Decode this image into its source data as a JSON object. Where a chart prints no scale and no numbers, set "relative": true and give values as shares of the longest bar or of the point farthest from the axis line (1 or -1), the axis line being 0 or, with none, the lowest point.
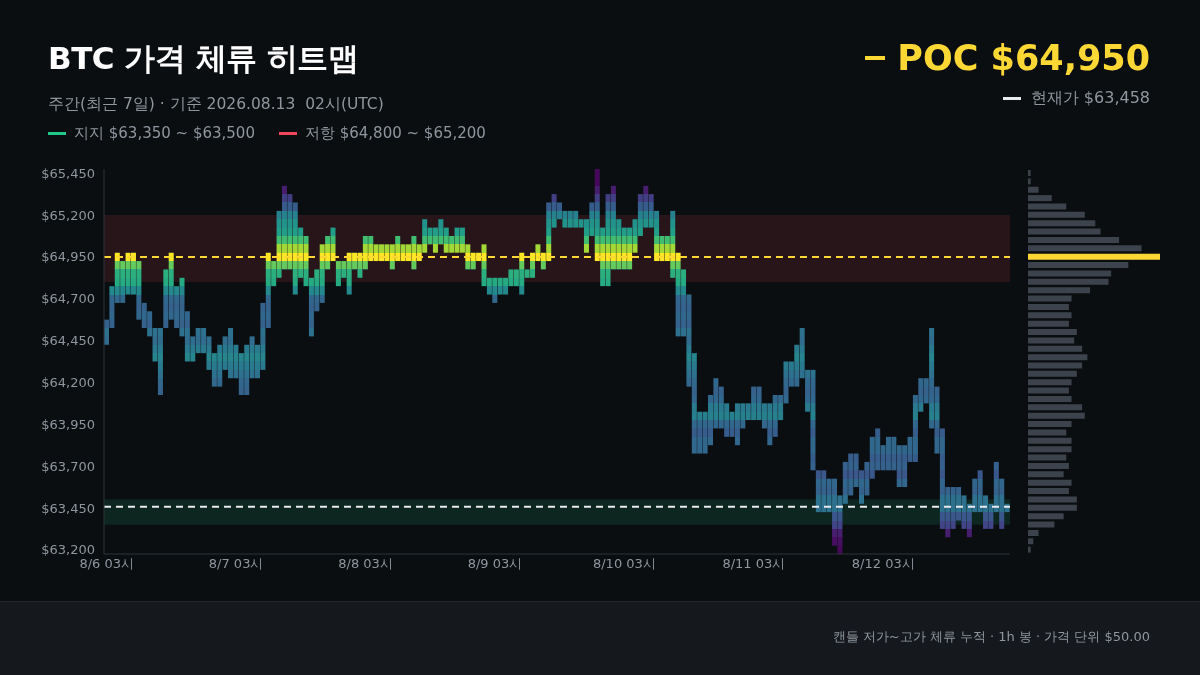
{
  "chart_data": [
    {
      "type": "bar",
      "title": "BTC 가격 체류 히트맵",
      "subtitle": "주간(최근 7일) · 기준 2026.08.13  02시(UTC)",
      "legend": "top",
      "annotations": [
        "캔들 저가~고가 체류 누적 · 1h 봉 · 가격 단위 $50.00"
      ],
      "x": [
        "2026-08-06T03:00",
        "2026-08-06T04:00",
        "2026-08-06T05:00",
        "2026-08-06T06:00",
        "2026-08-06T07:00",
        "2026-08-06T08:00",
        "2026-08-06T09:00",
        "2026-08-06T10:00",
        "2026-08-06T11:00",
        "2026-08-06T12:00",
        "2026-08-06T13:00",
        "2026-08-06T14:00",
        "2026-08-06T15:00",
        "2026-08-06T16:00",
        "2026-08-06T17:00",
        "2026-08-06T18:00",
        "2026-08-06T19:00",
        "2026-08-06T20:00",
        "2026-08-06T21:00",
        "2026-08-06T22:00",
        "2026-08-06T23:00",
        "2026-08-07T00:00",
        "2026-08-07T01:00",
        "2026-08-07T02:00",
        "2026-08-07T03:00",
        "2026-08-07T04:00",
        "2026-08-07T05:00",
        "2026-08-07T06:00",
        "2026-08-07T07:00",
        "2026-08-07T08:00",
        "2026-08-07T09:00",
        "2026-08-07T10:00",
        "2026-08-07T11:00",
        "2026-08-07T12:00",
        "2026-08-07T13:00",
        "2026-08-07T14:00",
        "2026-08-07T15:00",
        "2026-08-07T16:00",
        "2026-08-07T17:00",
        "2026-08-07T18:00",
        "2026-08-07T19:00",
        "2026-08-07T20:00",
        "2026-08-07T21:00",
        "2026-08-07T22:00",
        "2026-08-07T23:00",
        "2026-08-08T00:00",
        "2026-08-08T01:00",
        "2026-08-08T02:00",
        "2026-08-08T03:00",
        "2026-08-08T04:00",
        "2026-08-08T05:00",
        "2026-08-08T06:00",
        "2026-08-08T07:00",
        "2026-08-08T08:00",
        "2026-08-08T09:00",
        "2026-08-08T10:00",
        "2026-08-08T11:00",
        "2026-08-08T12:00",
        "2026-08-08T13:00",
        "2026-08-08T14:00",
        "2026-08-08T15:00",
        "2026-08-08T16:00",
        "2026-08-08T17:00",
        "2026-08-08T18:00",
        "2026-08-08T19:00",
        "2026-08-08T20:00",
        "2026-08-08T21:00",
        "2026-08-08T22:00",
        "2026-08-08T23:00",
        "2026-08-09T00:00",
        "2026-08-09T01:00",
        "2026-08-09T02:00",
        "2026-08-09T03:00",
        "2026-08-09T04:00",
        "2026-08-09T05:00",
        "2026-08-09T06:00",
        "2026-08-09T07:00",
        "2026-08-09T08:00",
        "2026-08-09T09:00",
        "2026-08-09T10:00",
        "2026-08-09T11:00",
        "2026-08-09T12:00",
        "2026-08-09T13:00",
        "2026-08-09T14:00",
        "2026-08-09T15:00",
        "2026-08-09T16:00",
        "2026-08-09T17:00",
        "2026-08-09T18:00",
        "2026-08-09T19:00",
        "2026-08-09T20:00",
        "2026-08-09T21:00",
        "2026-08-09T22:00",
        "2026-08-09T23:00",
        "2026-08-10T00:00",
        "2026-08-10T01:00",
        "2026-08-10T02:00",
        "2026-08-10T03:00",
        "2026-08-10T04:00",
        "2026-08-10T05:00",
        "2026-08-10T06:00",
        "2026-08-10T07:00",
        "2026-08-10T08:00",
        "2026-08-10T09:00",
        "2026-08-10T10:00",
        "2026-08-10T11:00",
        "2026-08-10T12:00",
        "2026-08-10T13:00",
        "2026-08-10T14:00",
        "2026-08-10T15:00",
        "2026-08-10T16:00",
        "2026-08-10T17:00",
        "2026-08-10T18:00",
        "2026-08-10T19:00",
        "2026-08-10T20:00",
        "2026-08-10T21:00",
        "2026-08-10T22:00",
        "2026-08-10T23:00",
        "2026-08-11T00:00",
        "2026-08-11T01:00",
        "2026-08-11T02:00",
        "2026-08-11T03:00",
        "2026-08-11T04:00",
        "2026-08-11T05:00",
        "2026-08-11T06:00",
        "2026-08-11T07:00",
        "2026-08-11T08:00",
        "2026-08-11T09:00",
        "2026-08-11T10:00",
        "2026-08-11T11:00",
        "2026-08-11T12:00",
        "2026-08-11T13:00",
        "2026-08-11T14:00",
        "2026-08-11T15:00",
        "2026-08-11T16:00",
        "2026-08-11T17:00",
        "2026-08-11T18:00",
        "2026-08-11T19:00",
        "2026-08-11T20:00",
        "2026-08-11T21:00",
        "2026-08-11T22:00",
        "2026-08-11T23:00",
        "2026-08-12T00:00",
        "2026-08-12T01:00",
        "2026-08-12T02:00",
        "2026-08-12T03:00",
        "2026-08-12T04:00",
        "2026-08-12T05:00",
        "2026-08-12T06:00",
        "2026-08-12T07:00",
        "2026-08-12T08:00",
        "2026-08-12T09:00",
        "2026-08-12T10:00",
        "2026-08-12T11:00",
        "2026-08-12T12:00",
        "2026-08-12T13:00",
        "2026-08-12T14:00",
        "2026-08-12T15:00",
        "2026-08-12T16:00",
        "2026-08-12T17:00",
        "2026-08-12T18:00",
        "2026-08-12T19:00",
        "2026-08-12T20:00",
        "2026-08-12T21:00",
        "2026-08-12T22:00",
        "2026-08-12T23:00",
        "2026-08-13T00:00",
        "2026-08-13T01:00",
        "2026-08-13T02:00"
      ],
      "base": [
        64425,
        64525,
        64675,
        64675,
        64725,
        64725,
        64575,
        64525,
        64475,
        64325,
        64125,
        64525,
        64575,
        64525,
        64475,
        64325,
        64325,
        64375,
        64375,
        64275,
        64175,
        64175,
        64275,
        64225,
        64225,
        64125,
        64125,
        64225,
        64225,
        64275,
        64525,
        64775,
        64825,
        64875,
        64875,
        64725,
        64825,
        64775,
        64475,
        64625,
        64675,
        64875,
        64925,
        64775,
        64825,
        64725,
        64875,
        64825,
        64875,
        64925,
        64925,
        64925,
        64925,
        64875,
        64925,
        64925,
        64925,
        64875,
        64925,
        64975,
        65025,
        64975,
        65025,
        64975,
        64975,
        64975,
        64975,
        64875,
        64875,
        64925,
        64775,
        64725,
        64675,
        64725,
        64725,
        64775,
        64775,
        64725,
        64825,
        64825,
        64925,
        64875,
        64925,
        65125,
        65175,
        65125,
        65125,
        65125,
        65125,
        64975,
        65075,
        64925,
        64775,
        64775,
        64875,
        64875,
        64875,
        64875,
        64975,
        65075,
        65125,
        65125,
        64925,
        64925,
        64925,
        64825,
        64475,
        64475,
        64175,
        63775,
        63775,
        63775,
        63825,
        63925,
        63925,
        63875,
        63875,
        63825,
        63925,
        63975,
        63975,
        63975,
        63925,
        63825,
        63875,
        63975,
        64075,
        64175,
        64175,
        64225,
        64025,
        63675,
        63425,
        63425,
        63425,
        63225,
        63175,
        63475,
        63525,
        63575,
        63475,
        63525,
        63625,
        63675,
        63675,
        63675,
        63675,
        63575,
        63575,
        63725,
        63725,
        64025,
        64075,
        63925,
        63775,
        63325,
        63275,
        63325,
        63375,
        63325,
        63275,
        63425,
        63425,
        63325,
        63325,
        63425,
        63325,
        63425
      ],
      "values": [
        150,
        250,
        300,
        250,
        250,
        250,
        350,
        150,
        150,
        200,
        400,
        350,
        400,
        250,
        350,
        300,
        150,
        150,
        150,
        200,
        200,
        250,
        200,
        300,
        200,
        250,
        300,
        250,
        200,
        400,
        450,
        150,
        400,
        500,
        450,
        550,
        300,
        300,
        350,
        250,
        350,
        200,
        200,
        150,
        100,
        250,
        100,
        150,
        200,
        150,
        100,
        100,
        100,
        150,
        150,
        100,
        100,
        200,
        100,
        200,
        100,
        150,
        150,
        150,
        100,
        150,
        150,
        150,
        100,
        50,
        250,
        100,
        150,
        100,
        100,
        100,
        100,
        250,
        50,
        150,
        100,
        100,
        350,
        200,
        100,
        100,
        100,
        100,
        50,
        200,
        200,
        550,
        350,
        550,
        500,
        300,
        250,
        250,
        200,
        250,
        250,
        200,
        300,
        150,
        150,
        400,
        500,
        400,
        550,
        600,
        250,
        250,
        300,
        300,
        250,
        200,
        150,
        250,
        150,
        100,
        200,
        200,
        150,
        250,
        250,
        150,
        250,
        150,
        250,
        300,
        250,
        600,
        250,
        250,
        200,
        400,
        350,
        250,
        250,
        200,
        200,
        200,
        250,
        250,
        150,
        200,
        200,
        250,
        250,
        150,
        400,
        200,
        150,
        600,
        400,
        600,
        300,
        250,
        200,
        200,
        200,
        200,
        250,
        200,
        150,
        300,
        300,
        50
      ],
      "xlim": [
        "2026-08-06T02:30",
        "2026-08-13T02:30"
      ],
      "xticks": [
        {
          "value": "2026-08-06T03:00",
          "label": "8/6 03시"
        },
        {
          "value": "2026-08-07T03:00",
          "label": "8/7 03시"
        },
        {
          "value": "2026-08-08T03:00",
          "label": "8/8 03시"
        },
        {
          "value": "2026-08-09T03:00",
          "label": "8/9 03시"
        },
        {
          "value": "2026-08-10T03:00",
          "label": "8/10 03시"
        },
        {
          "value": "2026-08-11T03:00",
          "label": "8/11 03시"
        },
        {
          "value": "2026-08-12T03:00",
          "label": "8/12 03시"
        }
      ],
      "ylim": [
        63175,
        65475
      ],
      "yticks": [
        {
          "value": 63200,
          "label": "$63,200"
        },
        {
          "value": 63450,
          "label": "$63,450"
        },
        {
          "value": 63700,
          "label": "$63,700"
        },
        {
          "value": 63950,
          "label": "$63,950"
        },
        {
          "value": 64200,
          "label": "$64,200"
        },
        {
          "value": 64450,
          "label": "$64,450"
        },
        {
          "value": 64700,
          "label": "$64,700"
        },
        {
          "value": 64950,
          "label": "$64,950"
        },
        {
          "value": 65200,
          "label": "$65,200"
        },
        {
          "value": 65450,
          "label": "$65,450"
        }
      ],
      "ref_lines": [
        {
          "axis": "y",
          "value": 64950,
          "label": "POC $64,950",
          "color": "#fdd835",
          "line_style": "dashed"
        },
        {
          "axis": "y",
          "value": 63458,
          "label": "현재가 $63,458",
          "color": "#e8eaed",
          "line_style": "dashed"
        }
      ],
      "bands": [
        {
          "axis": "y",
          "from": 63350,
          "to": 63500,
          "label": "지지 $63,350 ~ $63,500",
          "color": "#1ec98a"
        },
        {
          "axis": "y",
          "from": 64800,
          "to": 65200,
          "label": "저항 $64,800 ~ $65,200",
          "color": "#f2475b"
        }
      ]
    },
    {
      "type": "bar",
      "orientation": "horizontal",
      "relative": true,
      "tick_labels": false,
      "categories": [
        null,
        null,
        null,
        null,
        null,
        null,
        null,
        null,
        null,
        null,
        null,
        null,
        null,
        null,
        null,
        null,
        null,
        null,
        null,
        null,
        null,
        null,
        null,
        null,
        null,
        null,
        null,
        null,
        null,
        null,
        null,
        null,
        null,
        null,
        null,
        null,
        null,
        null,
        null,
        null,
        null,
        null,
        null,
        null,
        null,
        null
      ],
      "values": [
        0.02,
        0.02,
        0.08,
        0.18,
        0.29,
        0.43,
        0.51,
        0.55,
        0.69,
        0.86,
        1,
        0.76,
        0.63,
        0.61,
        0.47,
        0.33,
        0.31,
        0.33,
        0.31,
        0.37,
        0.35,
        0.41,
        0.45,
        0.41,
        0.37,
        0.33,
        0.31,
        0.33,
        0.41,
        0.43,
        0.33,
        0.29,
        0.33,
        0.33,
        0.29,
        0.31,
        0.27,
        0.33,
        0.31,
        0.37,
        0.37,
        0.27,
        0.2,
        0.08,
        0.04,
        0.02
      ],
      "colors": [
        "#3d434d",
        "#3d434d",
        "#3d434d",
        "#3d434d",
        "#3d434d",
        "#3d434d",
        "#3d434d",
        "#3d434d",
        "#3d434d",
        "#3d434d",
        "#fdd835",
        "#3d434d",
        "#3d434d",
        "#3d434d",
        "#3d434d",
        "#3d434d",
        "#3d434d",
        "#3d434d",
        "#3d434d",
        "#3d434d",
        "#3d434d",
        "#3d434d",
        "#3d434d",
        "#3d434d",
        "#3d434d",
        "#3d434d",
        "#3d434d",
        "#3d434d",
        "#3d434d",
        "#3d434d",
        "#3d434d",
        "#3d434d",
        "#3d434d",
        "#3d434d",
        "#3d434d",
        "#3d434d",
        "#3d434d",
        "#3d434d",
        "#3d434d",
        "#3d434d",
        "#3d434d",
        "#3d434d",
        "#3d434d",
        "#3d434d",
        "#3d434d",
        "#3d434d"
      ]
    }
  ]
}
